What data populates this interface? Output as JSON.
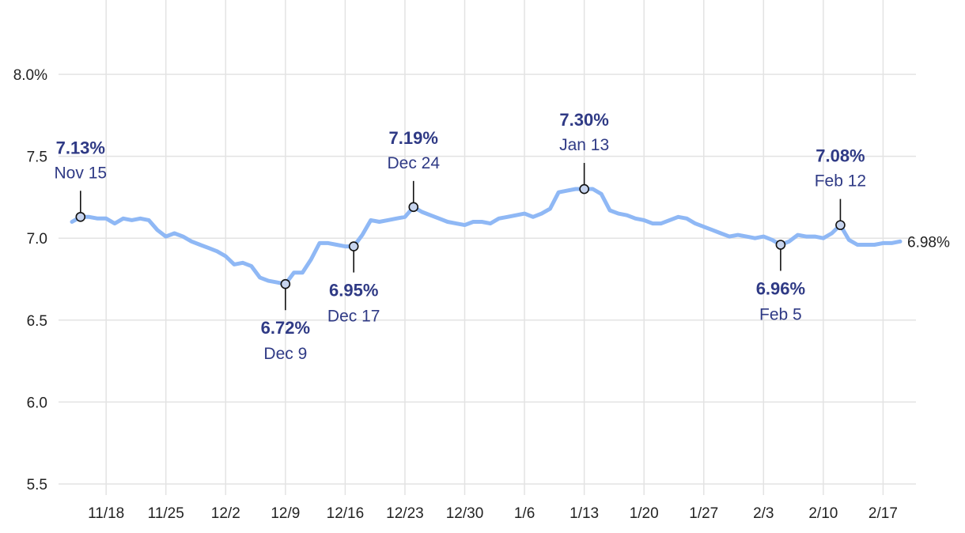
{
  "chart_data": {
    "type": "line",
    "title": "",
    "xlabel": "",
    "ylabel": "",
    "ylim": [
      5.5,
      8.2
    ],
    "yticks": [
      {
        "value": 8.0,
        "label": "8.0%"
      },
      {
        "value": 7.5,
        "label": "7.5"
      },
      {
        "value": 7.0,
        "label": "7.0"
      },
      {
        "value": 6.5,
        "label": "6.5"
      },
      {
        "value": 6.0,
        "label": "6.0"
      },
      {
        "value": 5.5,
        "label": "5.5"
      }
    ],
    "xticks": [
      {
        "date": "2023-11-18",
        "label": "11/18"
      },
      {
        "date": "2023-11-25",
        "label": "11/25"
      },
      {
        "date": "2023-12-02",
        "label": "12/2"
      },
      {
        "date": "2023-12-09",
        "label": "12/9"
      },
      {
        "date": "2023-12-16",
        "label": "12/16"
      },
      {
        "date": "2023-12-23",
        "label": "12/23"
      },
      {
        "date": "2023-12-30",
        "label": "12/30"
      },
      {
        "date": "2024-01-06",
        "label": "1/6"
      },
      {
        "date": "2024-01-13",
        "label": "1/13"
      },
      {
        "date": "2024-01-20",
        "label": "1/20"
      },
      {
        "date": "2024-01-27",
        "label": "1/27"
      },
      {
        "date": "2024-02-03",
        "label": "2/3"
      },
      {
        "date": "2024-02-10",
        "label": "2/10"
      },
      {
        "date": "2024-02-17",
        "label": "2/17"
      }
    ],
    "xlim": [
      "2023-11-14",
      "2024-02-19"
    ],
    "grid": true,
    "colors": {
      "line": "#8fb8f5",
      "annotation": "#2f3a85",
      "grid": "#e3e3e3"
    },
    "series": [
      {
        "points": [
          [
            "2023-11-14",
            7.1
          ],
          [
            "2023-11-15",
            7.13
          ],
          [
            "2023-11-16",
            7.13
          ],
          [
            "2023-11-17",
            7.12
          ],
          [
            "2023-11-18",
            7.12
          ],
          [
            "2023-11-19",
            7.09
          ],
          [
            "2023-11-20",
            7.12
          ],
          [
            "2023-11-21",
            7.11
          ],
          [
            "2023-11-22",
            7.12
          ],
          [
            "2023-11-23",
            7.11
          ],
          [
            "2023-11-24",
            7.05
          ],
          [
            "2023-11-25",
            7.01
          ],
          [
            "2023-11-26",
            7.03
          ],
          [
            "2023-11-27",
            7.01
          ],
          [
            "2023-11-28",
            6.98
          ],
          [
            "2023-11-29",
            6.96
          ],
          [
            "2023-11-30",
            6.94
          ],
          [
            "2023-12-01",
            6.92
          ],
          [
            "2023-12-02",
            6.89
          ],
          [
            "2023-12-03",
            6.84
          ],
          [
            "2023-12-04",
            6.85
          ],
          [
            "2023-12-05",
            6.83
          ],
          [
            "2023-12-06",
            6.76
          ],
          [
            "2023-12-07",
            6.74
          ],
          [
            "2023-12-08",
            6.73
          ],
          [
            "2023-12-09",
            6.72
          ],
          [
            "2023-12-10",
            6.79
          ],
          [
            "2023-12-11",
            6.79
          ],
          [
            "2023-12-12",
            6.87
          ],
          [
            "2023-12-13",
            6.97
          ],
          [
            "2023-12-14",
            6.97
          ],
          [
            "2023-12-15",
            6.96
          ],
          [
            "2023-12-16",
            6.95
          ],
          [
            "2023-12-17",
            6.95
          ],
          [
            "2023-12-18",
            7.02
          ],
          [
            "2023-12-19",
            7.11
          ],
          [
            "2023-12-20",
            7.1
          ],
          [
            "2023-12-21",
            7.11
          ],
          [
            "2023-12-22",
            7.12
          ],
          [
            "2023-12-23",
            7.13
          ],
          [
            "2023-12-24",
            7.19
          ],
          [
            "2023-12-25",
            7.16
          ],
          [
            "2023-12-26",
            7.14
          ],
          [
            "2023-12-27",
            7.12
          ],
          [
            "2023-12-28",
            7.1
          ],
          [
            "2023-12-29",
            7.09
          ],
          [
            "2023-12-30",
            7.08
          ],
          [
            "2023-12-31",
            7.1
          ],
          [
            "2024-01-01",
            7.1
          ],
          [
            "2024-01-02",
            7.09
          ],
          [
            "2024-01-03",
            7.12
          ],
          [
            "2024-01-04",
            7.13
          ],
          [
            "2024-01-05",
            7.14
          ],
          [
            "2024-01-06",
            7.15
          ],
          [
            "2024-01-07",
            7.13
          ],
          [
            "2024-01-08",
            7.15
          ],
          [
            "2024-01-09",
            7.18
          ],
          [
            "2024-01-10",
            7.28
          ],
          [
            "2024-01-11",
            7.29
          ],
          [
            "2024-01-12",
            7.3
          ],
          [
            "2024-01-13",
            7.3
          ],
          [
            "2024-01-14",
            7.3
          ],
          [
            "2024-01-15",
            7.27
          ],
          [
            "2024-01-16",
            7.17
          ],
          [
            "2024-01-17",
            7.15
          ],
          [
            "2024-01-18",
            7.14
          ],
          [
            "2024-01-19",
            7.12
          ],
          [
            "2024-01-20",
            7.11
          ],
          [
            "2024-01-21",
            7.09
          ],
          [
            "2024-01-22",
            7.09
          ],
          [
            "2024-01-23",
            7.11
          ],
          [
            "2024-01-24",
            7.13
          ],
          [
            "2024-01-25",
            7.12
          ],
          [
            "2024-01-26",
            7.09
          ],
          [
            "2024-01-27",
            7.07
          ],
          [
            "2024-01-28",
            7.05
          ],
          [
            "2024-01-29",
            7.03
          ],
          [
            "2024-01-30",
            7.01
          ],
          [
            "2024-01-31",
            7.02
          ],
          [
            "2024-02-01",
            7.01
          ],
          [
            "2024-02-02",
            7.0
          ],
          [
            "2024-02-03",
            7.01
          ],
          [
            "2024-02-04",
            6.99
          ],
          [
            "2024-02-05",
            6.96
          ],
          [
            "2024-02-06",
            6.98
          ],
          [
            "2024-02-07",
            7.02
          ],
          [
            "2024-02-08",
            7.01
          ],
          [
            "2024-02-09",
            7.01
          ],
          [
            "2024-02-10",
            7.0
          ],
          [
            "2024-02-11",
            7.03
          ],
          [
            "2024-02-12",
            7.08
          ],
          [
            "2024-02-13",
            6.99
          ],
          [
            "2024-02-14",
            6.96
          ],
          [
            "2024-02-15",
            6.96
          ],
          [
            "2024-02-16",
            6.96
          ],
          [
            "2024-02-17",
            6.97
          ],
          [
            "2024-02-18",
            6.97
          ],
          [
            "2024-02-19",
            6.98
          ]
        ]
      }
    ],
    "annotations": [
      {
        "date": "2023-11-15",
        "value": 7.13,
        "value_label": "7.13%",
        "date_label": "Nov 15",
        "position": "above"
      },
      {
        "date": "2023-12-09",
        "value": 6.72,
        "value_label": "6.72%",
        "date_label": "Dec 9",
        "position": "below"
      },
      {
        "date": "2023-12-17",
        "value": 6.95,
        "value_label": "6.95%",
        "date_label": "Dec 17",
        "position": "below"
      },
      {
        "date": "2023-12-24",
        "value": 7.19,
        "value_label": "7.19%",
        "date_label": "Dec 24",
        "position": "above"
      },
      {
        "date": "2024-01-13",
        "value": 7.3,
        "value_label": "7.30%",
        "date_label": "Jan 13",
        "position": "above"
      },
      {
        "date": "2024-02-05",
        "value": 6.96,
        "value_label": "6.96%",
        "date_label": "Feb 5",
        "position": "below"
      },
      {
        "date": "2024-02-12",
        "value": 7.08,
        "value_label": "7.08%",
        "date_label": "Feb 12",
        "position": "above"
      }
    ],
    "end_label": {
      "date": "2024-02-19",
      "value": 6.98,
      "text": "6.98%"
    }
  }
}
